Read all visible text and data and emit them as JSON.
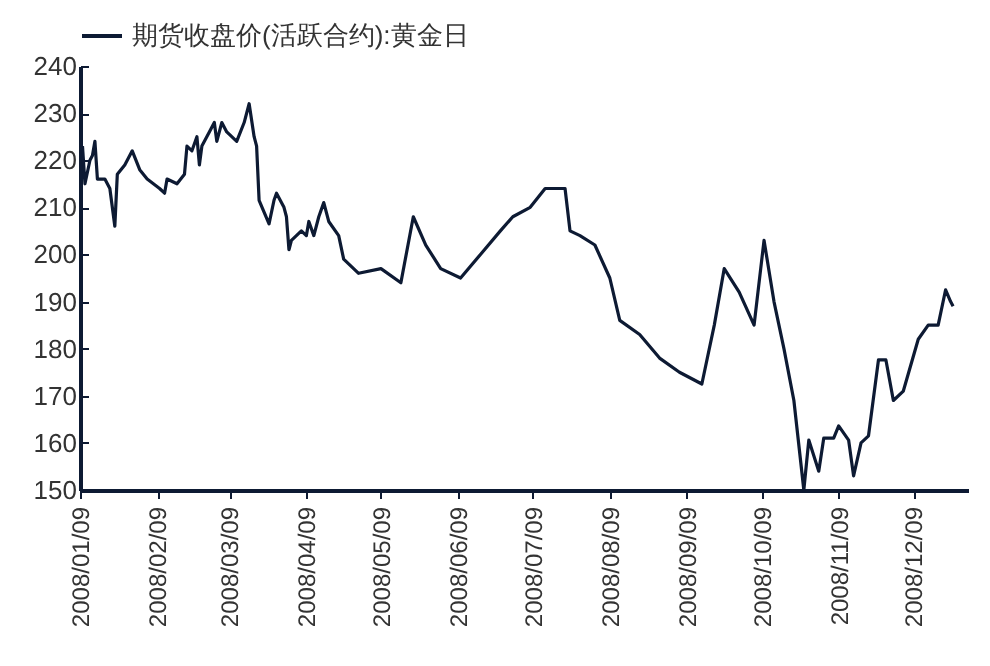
{
  "chart_data": {
    "type": "line",
    "x": [
      "2008-01-10",
      "2008-01-11",
      "2008-01-13",
      "2008-01-14",
      "2008-01-15",
      "2008-01-16",
      "2008-01-19",
      "2008-01-21",
      "2008-01-23",
      "2008-01-24",
      "2008-01-27",
      "2008-01-30",
      "2008-02-02",
      "2008-02-05",
      "2008-02-10",
      "2008-02-12",
      "2008-02-13",
      "2008-02-17",
      "2008-02-20",
      "2008-02-21",
      "2008-02-23",
      "2008-02-25",
      "2008-02-26",
      "2008-02-27",
      "2008-03-01",
      "2008-03-03",
      "2008-03-04",
      "2008-03-06",
      "2008-03-08",
      "2008-03-12",
      "2008-03-15",
      "2008-03-17",
      "2008-03-19",
      "2008-03-20",
      "2008-03-21",
      "2008-03-23",
      "2008-03-25",
      "2008-03-27",
      "2008-03-28",
      "2008-03-31",
      "2008-04-01",
      "2008-04-02",
      "2008-04-03",
      "2008-04-07",
      "2008-04-09",
      "2008-04-10",
      "2008-04-12",
      "2008-04-14",
      "2008-04-16",
      "2008-04-18",
      "2008-04-22",
      "2008-04-24",
      "2008-04-30",
      "2008-05-09",
      "2008-05-17",
      "2008-05-22",
      "2008-05-27",
      "2008-06-02",
      "2008-06-10",
      "2008-06-18",
      "2008-06-26",
      "2008-07-01",
      "2008-07-08",
      "2008-07-14",
      "2008-07-22",
      "2008-07-24",
      "2008-07-28",
      "2008-08-03",
      "2008-08-09",
      "2008-08-13",
      "2008-08-21",
      "2008-08-29",
      "2008-09-06",
      "2008-09-15",
      "2008-09-20",
      "2008-09-24",
      "2008-09-30",
      "2008-10-06",
      "2008-10-10",
      "2008-10-14",
      "2008-10-18",
      "2008-10-22",
      "2008-10-26",
      "2008-10-28",
      "2008-11-01",
      "2008-11-03",
      "2008-11-07",
      "2008-11-09",
      "2008-11-13",
      "2008-11-15",
      "2008-11-18",
      "2008-11-21",
      "2008-11-25",
      "2008-11-28",
      "2008-12-01",
      "2008-12-05",
      "2008-12-11",
      "2008-12-15",
      "2008-12-19",
      "2008-12-22",
      "2008-12-24",
      "2008-12-25"
    ],
    "series": [
      {
        "name": "期货收盘价(活跃合约):黄金日",
        "color": "#0d1a33",
        "values": [
          223,
          215,
          220,
          221,
          224,
          216,
          216,
          214,
          206,
          217,
          219,
          222,
          218,
          216,
          214,
          213,
          216,
          215,
          217,
          223,
          222,
          225,
          219,
          223,
          226,
          228,
          224,
          228,
          226,
          224,
          228,
          232,
          225,
          223,
          211.5,
          209,
          206.5,
          211.5,
          213,
          210,
          208,
          201,
          203,
          205,
          204,
          207,
          204,
          208,
          211,
          207,
          204,
          199,
          196,
          197,
          194,
          208,
          202,
          197,
          195,
          200,
          205,
          208,
          210,
          214,
          214,
          205,
          204,
          202,
          195,
          186,
          183,
          178,
          175,
          172.5,
          185,
          197,
          192,
          185,
          203,
          190,
          180,
          169,
          150,
          160.6,
          154,
          161,
          161,
          163.6,
          160.6,
          153,
          160,
          161.5,
          177.6,
          177.6,
          169,
          171,
          182,
          185,
          185,
          192.5,
          190,
          189
        ]
      }
    ],
    "xlim": [
      "2008-01-09",
      "2008-12-31"
    ],
    "xticks": [
      {
        "value": "2008-01-09",
        "label": "2008/01/09"
      },
      {
        "value": "2008-02-09",
        "label": "2008/02/09"
      },
      {
        "value": "2008-03-09",
        "label": "2008/03/09"
      },
      {
        "value": "2008-04-09",
        "label": "2008/04/09"
      },
      {
        "value": "2008-05-09",
        "label": "2008/05/09"
      },
      {
        "value": "2008-06-09",
        "label": "2008/06/09"
      },
      {
        "value": "2008-07-09",
        "label": "2008/07/09"
      },
      {
        "value": "2008-08-09",
        "label": "2008/08/09"
      },
      {
        "value": "2008-09-09",
        "label": "2008/09/09"
      },
      {
        "value": "2008-10-09",
        "label": "2008/10/09"
      },
      {
        "value": "2008-11-09",
        "label": "2008/11/09"
      },
      {
        "value": "2008-12-09",
        "label": "2008/12/09"
      }
    ],
    "ylim": [
      150,
      240
    ],
    "yticks": [
      150,
      160,
      170,
      180,
      190,
      200,
      210,
      220,
      230,
      240
    ],
    "grid": false,
    "legend": "top",
    "line_style": "solid"
  }
}
